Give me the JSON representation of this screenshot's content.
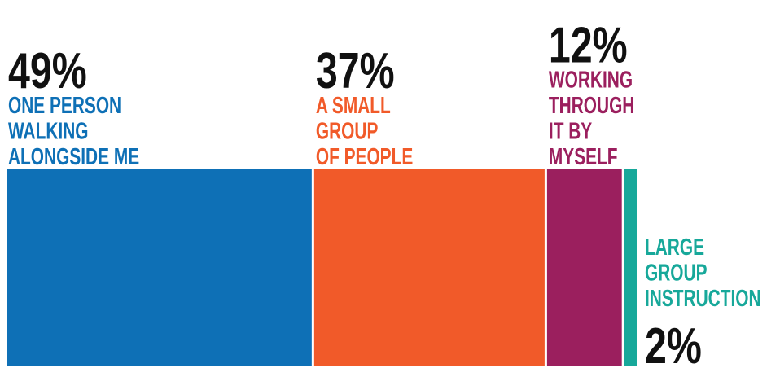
{
  "chart_data": {
    "type": "bar",
    "title": "",
    "xlabel": "",
    "ylabel": "",
    "categories": [
      "ONE PERSON WALKING ALONGSIDE ME",
      "A SMALL GROUP OF PEOPLE",
      "WORKING THROUGH IT BY MYSELF",
      "LARGE GROUP INSTRUCTION"
    ],
    "label_lines": [
      [
        "ONE PERSON",
        "WALKING",
        "ALONGSIDE ME"
      ],
      [
        "A SMALL",
        "GROUP",
        "OF PEOPLE"
      ],
      [
        "WORKING",
        "THROUGH",
        "IT BY",
        "MYSELF"
      ],
      [
        "LARGE",
        "GROUP",
        "INSTRUCTION"
      ]
    ],
    "values": [
      49,
      37,
      12,
      2
    ],
    "value_labels": [
      "49%",
      "37%",
      "12%",
      "2%"
    ],
    "colors": [
      "#0e70b6",
      "#f15a29",
      "#9b1f5e",
      "#17a89a"
    ],
    "unit": "%",
    "grid": false,
    "legend": "none"
  }
}
